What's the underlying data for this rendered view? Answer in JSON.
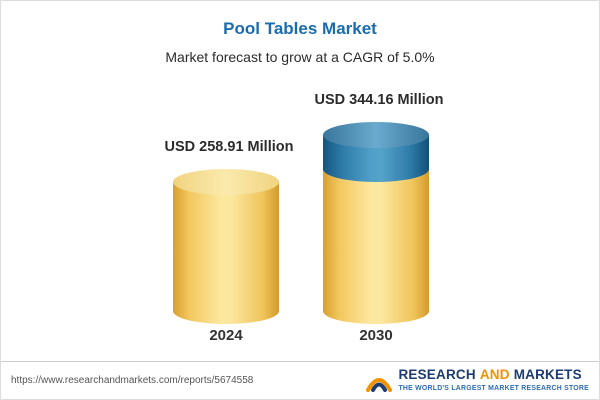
{
  "header": {
    "title": "Pool Tables Market",
    "subtitle": "Market forecast to grow at a CAGR of 5.0%"
  },
  "chart_data": {
    "type": "bar",
    "categories": [
      "2024",
      "2030"
    ],
    "values": [
      258.91,
      344.16
    ],
    "value_labels": [
      "USD 258.91 Million",
      "USD 344.16 Million"
    ],
    "unit": "USD Million",
    "title": "Pool Tables Market",
    "subtitle": "Market forecast to grow at a CAGR of 5.0%",
    "cagr": "5.0%",
    "legend_position": "none",
    "grid": false,
    "colors": {
      "bar_base": "#f5d06e",
      "growth_segment": "#3a7fae",
      "title_text": "#1a6cb0"
    }
  },
  "footer": {
    "url": "https://www.researchandmarkets.com/reports/5674558",
    "logo": {
      "word1": "RESEARCH",
      "word2": "AND",
      "word3": "MARKETS",
      "tagline": "THE WORLD'S LARGEST MARKET RESEARCH STORE"
    }
  }
}
